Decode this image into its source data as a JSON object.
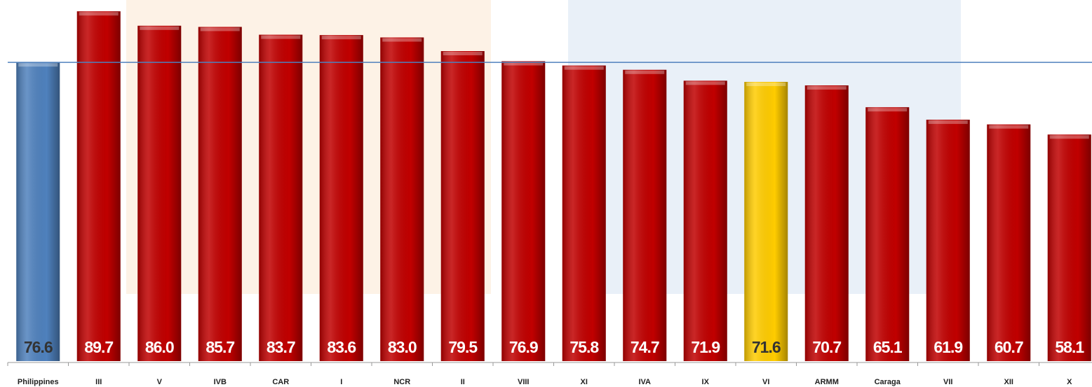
{
  "chart_data": {
    "type": "bar",
    "categories": [
      "Philippines",
      "III",
      "V",
      "IVB",
      "CAR",
      "I",
      "NCR",
      "II",
      "VIII",
      "XI",
      "IVA",
      "IX",
      "VI",
      "ARMM",
      "Caraga",
      "VII",
      "XII",
      "X"
    ],
    "values": [
      76.6,
      89.7,
      86.0,
      85.7,
      83.7,
      83.6,
      83.0,
      79.5,
      76.9,
      75.8,
      74.7,
      71.9,
      71.6,
      70.7,
      65.1,
      61.9,
      60.7,
      58.1
    ],
    "value_labels": [
      "76.6",
      "89.7",
      "86.0",
      "85.7",
      "83.7",
      "83.6",
      "83.0",
      "79.5",
      "76.9",
      "75.8",
      "74.7",
      "71.9",
      "71.6",
      "70.7",
      "65.1",
      "61.9",
      "60.7",
      "58.1"
    ],
    "colors": [
      "#4f81bd",
      "#c00000",
      "#c00000",
      "#c00000",
      "#c00000",
      "#c00000",
      "#c00000",
      "#c00000",
      "#c00000",
      "#c00000",
      "#c00000",
      "#c00000",
      "#ffcc00",
      "#c00000",
      "#c00000",
      "#c00000",
      "#c00000",
      "#c00000"
    ],
    "reference_line_color": "#4f81bd",
    "ylim": [
      0,
      92.6
    ]
  }
}
